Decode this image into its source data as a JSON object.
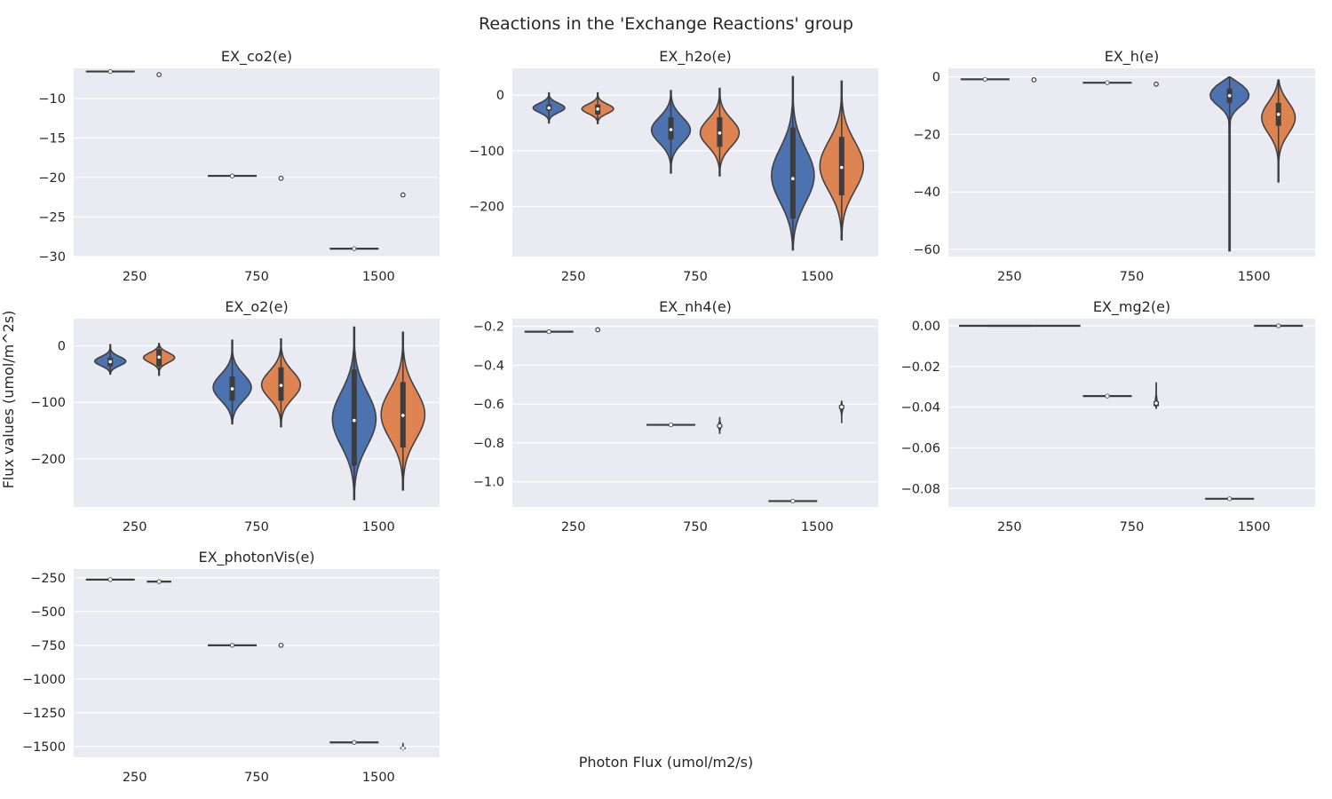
{
  "figure": {
    "suptitle": "Reactions in the 'Exchange Reactions' group",
    "supxlabel": "Photon Flux (umol/m2/s)",
    "supylabel": "Flux values (umol/m^2s)"
  },
  "colors": {
    "series_a": "#4c72b0",
    "series_b": "#dd8452",
    "panel_bg": "#eaeaf2",
    "grid": "#ffffff",
    "edge": "#3d3d3d"
  },
  "chart_data": [
    {
      "type": "violin",
      "title": "EX_co2(e)",
      "categories": [
        "250",
        "750",
        "1500"
      ],
      "ylim": [
        -30,
        -6.2
      ],
      "yticks": [
        -10,
        -15,
        -20,
        -25,
        -30
      ],
      "grid": true,
      "series": [
        {
          "groups": [
            {
              "kind": "line",
              "median": -6.6,
              "min": -6.6,
              "max": -6.6
            },
            {
              "kind": "line",
              "median": -19.8,
              "min": -19.8,
              "max": -19.8
            },
            {
              "kind": "line",
              "median": -29.0,
              "min": -29.0,
              "max": -29.0
            }
          ]
        },
        {
          "groups": [
            {
              "kind": "point",
              "median": -7.0
            },
            {
              "kind": "point",
              "median": -20.1
            },
            {
              "kind": "point",
              "median": -22.2
            }
          ]
        }
      ]
    },
    {
      "type": "violin",
      "title": "EX_h2o(e)",
      "categories": [
        "250",
        "750",
        "1500"
      ],
      "ylim": [
        -290,
        48
      ],
      "yticks": [
        0,
        -100,
        -200
      ],
      "grid": true,
      "series": [
        {
          "groups": [
            {
              "kind": "violin",
              "min": -50,
              "max": 4,
              "q1": -28,
              "q3": -17,
              "median": -23,
              "width": 0.65
            },
            {
              "kind": "violin",
              "min": -140,
              "max": 8,
              "q1": -80,
              "q3": -40,
              "median": -62,
              "width": 0.8
            },
            {
              "kind": "violin",
              "min": -278,
              "max": 33,
              "q1": -222,
              "q3": -58,
              "median": -150,
              "width": 0.9
            }
          ]
        },
        {
          "groups": [
            {
              "kind": "violin",
              "min": -51,
              "max": 4,
              "q1": -35,
              "q3": -17,
              "median": -25,
              "width": 0.65
            },
            {
              "kind": "violin",
              "min": -145,
              "max": 12,
              "q1": -93,
              "q3": -40,
              "median": -68,
              "width": 0.8
            },
            {
              "kind": "violin",
              "min": -260,
              "max": 25,
              "q1": -180,
              "q3": -75,
              "median": -130,
              "width": 0.9
            }
          ]
        }
      ]
    },
    {
      "type": "violin",
      "title": "EX_h(e)",
      "categories": [
        "250",
        "750",
        "1500"
      ],
      "ylim": [
        -62.5,
        3
      ],
      "yticks": [
        0,
        -20,
        -40,
        -60
      ],
      "grid": true,
      "series": [
        {
          "groups": [
            {
              "kind": "line",
              "median": -0.8,
              "min": -0.8,
              "max": -0.8
            },
            {
              "kind": "line",
              "median": -2.0,
              "min": -2.0,
              "max": -2.0
            },
            {
              "kind": "violin",
              "min": -60.5,
              "max": 0,
              "q1": -9,
              "q3": -4,
              "median": -6.5,
              "width": 0.8,
              "shape": "long-tail"
            }
          ]
        },
        {
          "groups": [
            {
              "kind": "point",
              "median": -1.0
            },
            {
              "kind": "point",
              "median": -2.5
            },
            {
              "kind": "violin",
              "min": -36.5,
              "max": -1,
              "q1": -17,
              "q3": -9,
              "median": -13,
              "width": 0.75
            }
          ]
        }
      ]
    },
    {
      "type": "violin",
      "title": "EX_o2(e)",
      "categories": [
        "250",
        "750",
        "1500"
      ],
      "ylim": [
        -285,
        48
      ],
      "yticks": [
        0,
        -100,
        -200
      ],
      "grid": true,
      "series": [
        {
          "groups": [
            {
              "kind": "violin",
              "min": -50,
              "max": 2,
              "q1": -36,
              "q3": -21,
              "median": -28,
              "width": 0.65
            },
            {
              "kind": "violin",
              "min": -138,
              "max": 10,
              "q1": -97,
              "q3": -54,
              "median": -76,
              "width": 0.8
            },
            {
              "kind": "violin",
              "min": -272,
              "max": 33,
              "q1": -212,
              "q3": -42,
              "median": -132,
              "width": 0.9
            }
          ]
        },
        {
          "groups": [
            {
              "kind": "violin",
              "min": -52,
              "max": 4,
              "q1": -36,
              "q3": -6,
              "median": -20,
              "width": 0.65
            },
            {
              "kind": "violin",
              "min": -143,
              "max": 12,
              "q1": -97,
              "q3": -38,
              "median": -70,
              "width": 0.8
            },
            {
              "kind": "violin",
              "min": -255,
              "max": 24,
              "q1": -180,
              "q3": -64,
              "median": -123,
              "width": 0.9
            }
          ]
        }
      ]
    },
    {
      "type": "violin",
      "title": "EX_nh4(e)",
      "categories": [
        "250",
        "750",
        "1500"
      ],
      "ylim": [
        -1.13,
        -0.16
      ],
      "yticks": [
        -0.2,
        -0.4,
        -0.6,
        -0.8,
        -1.0
      ],
      "grid": true,
      "series": [
        {
          "groups": [
            {
              "kind": "line",
              "median": -0.227,
              "min": -0.227,
              "max": -0.227
            },
            {
              "kind": "line",
              "median": -0.707,
              "min": -0.707,
              "max": -0.707
            },
            {
              "kind": "line",
              "median": -1.1,
              "min": -1.1,
              "max": -1.1
            }
          ]
        },
        {
          "groups": [
            {
              "kind": "point",
              "median": -0.217
            },
            {
              "kind": "violin",
              "min": -0.75,
              "max": -0.67,
              "q1": -0.72,
              "q3": -0.705,
              "median": -0.712,
              "width": 0.06
            },
            {
              "kind": "violin",
              "min": -0.695,
              "max": -0.585,
              "q1": -0.625,
              "q3": -0.605,
              "median": -0.615,
              "width": 0.06
            }
          ]
        }
      ]
    },
    {
      "type": "violin",
      "title": "EX_mg2(e)",
      "categories": [
        "250",
        "750",
        "1500"
      ],
      "ylim": [
        -0.089,
        0.0035
      ],
      "yticks": [
        0.0,
        -0.02,
        -0.04,
        -0.06,
        -0.08
      ],
      "grid": true,
      "series": [
        {
          "groups": [
            {
              "kind": "line",
              "median": 0.0,
              "min": 0.0,
              "max": 0.0,
              "wide": true
            },
            {
              "kind": "line",
              "median": -0.0345,
              "min": -0.0345,
              "max": -0.0345
            },
            {
              "kind": "line",
              "median": -0.085,
              "min": -0.085,
              "max": -0.085
            }
          ]
        },
        {
          "groups": [
            {
              "kind": "line",
              "median": 0.0,
              "min": 0.0,
              "max": 0.0,
              "wide": true
            },
            {
              "kind": "violin",
              "min": -0.0405,
              "max": -0.028,
              "q1": -0.0395,
              "q3": -0.037,
              "median": -0.038,
              "width": 0.05
            },
            {
              "kind": "line",
              "median": 0.0,
              "min": 0.0,
              "max": 0.0
            }
          ]
        }
      ]
    },
    {
      "type": "violin",
      "title": "EX_photonVis(e)",
      "categories": [
        "250",
        "750",
        "1500"
      ],
      "ylim": [
        -1580,
        -185
      ],
      "yticks": [
        -250,
        -500,
        -750,
        -1000,
        -1250,
        -1500
      ],
      "grid": true,
      "series": [
        {
          "groups": [
            {
              "kind": "line",
              "median": -263,
              "min": -263,
              "max": -263
            },
            {
              "kind": "line",
              "median": -750,
              "min": -750,
              "max": -750
            },
            {
              "kind": "line",
              "median": -1470,
              "min": -1470,
              "max": -1470
            }
          ]
        },
        {
          "groups": [
            {
              "kind": "line",
              "median": -278,
              "min": -283,
              "max": -273,
              "short": true
            },
            {
              "kind": "point",
              "median": -750
            },
            {
              "kind": "violin",
              "min": -1525,
              "max": -1478,
              "q1": -1520,
              "q3": -1505,
              "median": -1512,
              "width": 0.05
            }
          ]
        }
      ]
    }
  ]
}
